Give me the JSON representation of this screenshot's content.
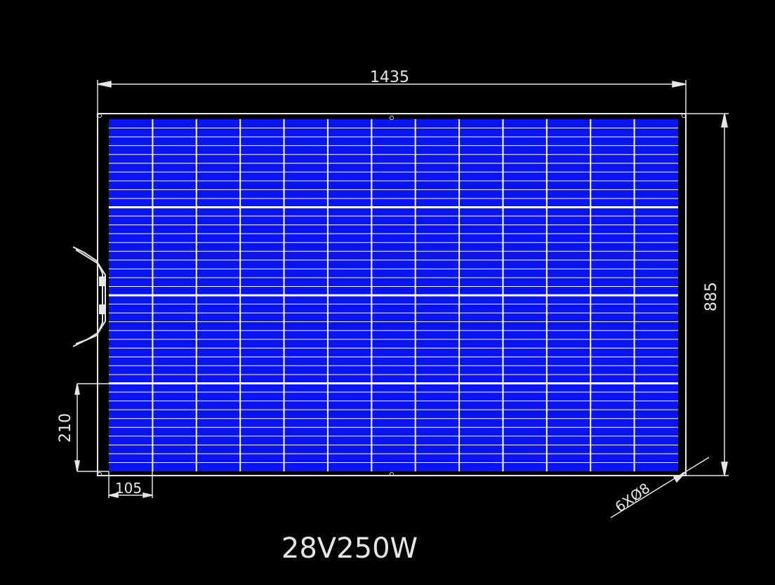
{
  "dimensions": {
    "width": "1435",
    "height": "885",
    "cell_height": "210",
    "cell_width": "105",
    "holes": "6XØ8"
  },
  "label": "28V250W"
}
